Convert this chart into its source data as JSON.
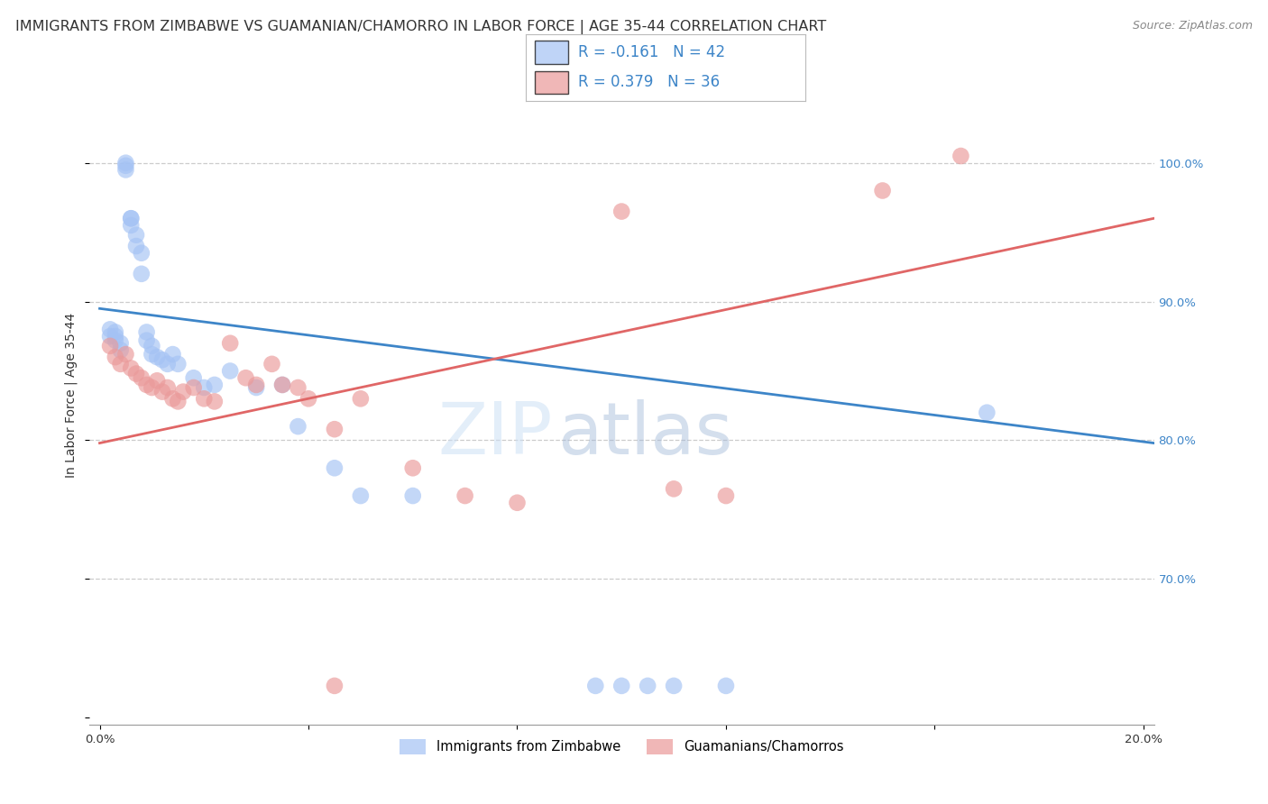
{
  "title": "IMMIGRANTS FROM ZIMBABWE VS GUAMANIAN/CHAMORRO IN LABOR FORCE | AGE 35-44 CORRELATION CHART",
  "source": "Source: ZipAtlas.com",
  "ylabel": "In Labor Force | Age 35-44",
  "xlim": [
    -0.002,
    0.202
  ],
  "ylim": [
    0.595,
    1.07
  ],
  "legend_R_blue": "-0.161",
  "legend_N_blue": "42",
  "legend_R_pink": "0.379",
  "legend_N_pink": "36",
  "blue_color": "#a4c2f4",
  "pink_color": "#ea9999",
  "blue_line_color": "#3d85c8",
  "pink_line_color": "#e06666",
  "watermark_zip": "ZIP",
  "watermark_atlas": "atlas",
  "blue_line_x": [
    0.0,
    0.202
  ],
  "blue_line_y": [
    0.895,
    0.798
  ],
  "pink_line_x": [
    0.0,
    0.202
  ],
  "pink_line_y": [
    0.798,
    0.96
  ],
  "blue_scatter_x": [
    0.002,
    0.002,
    0.003,
    0.003,
    0.003,
    0.004,
    0.004,
    0.005,
    0.005,
    0.005,
    0.006,
    0.006,
    0.006,
    0.007,
    0.007,
    0.008,
    0.008,
    0.009,
    0.009,
    0.01,
    0.01,
    0.011,
    0.012,
    0.013,
    0.014,
    0.015,
    0.018,
    0.02,
    0.022,
    0.025,
    0.03,
    0.035,
    0.038,
    0.045,
    0.05,
    0.06,
    0.095,
    0.1,
    0.105,
    0.11,
    0.12,
    0.17
  ],
  "blue_scatter_y": [
    0.88,
    0.875,
    0.878,
    0.875,
    0.872,
    0.87,
    0.865,
    0.995,
    0.998,
    1.0,
    0.96,
    0.96,
    0.955,
    0.948,
    0.94,
    0.935,
    0.92,
    0.878,
    0.872,
    0.868,
    0.862,
    0.86,
    0.858,
    0.855,
    0.862,
    0.855,
    0.845,
    0.838,
    0.84,
    0.85,
    0.838,
    0.84,
    0.81,
    0.78,
    0.76,
    0.76,
    0.623,
    0.623,
    0.623,
    0.623,
    0.623,
    0.82
  ],
  "pink_scatter_x": [
    0.002,
    0.003,
    0.004,
    0.005,
    0.006,
    0.007,
    0.008,
    0.009,
    0.01,
    0.011,
    0.012,
    0.013,
    0.014,
    0.015,
    0.016,
    0.018,
    0.02,
    0.022,
    0.025,
    0.028,
    0.03,
    0.033,
    0.035,
    0.038,
    0.04,
    0.045,
    0.05,
    0.06,
    0.07,
    0.08,
    0.11,
    0.12,
    0.15,
    0.165,
    0.1,
    0.045
  ],
  "pink_scatter_y": [
    0.868,
    0.86,
    0.855,
    0.862,
    0.852,
    0.848,
    0.845,
    0.84,
    0.838,
    0.843,
    0.835,
    0.838,
    0.83,
    0.828,
    0.835,
    0.838,
    0.83,
    0.828,
    0.87,
    0.845,
    0.84,
    0.855,
    0.84,
    0.838,
    0.83,
    0.808,
    0.83,
    0.78,
    0.76,
    0.755,
    0.765,
    0.76,
    0.98,
    1.005,
    0.965,
    0.623
  ],
  "grid_color": "#cccccc",
  "background_color": "#ffffff",
  "title_fontsize": 11.5,
  "source_fontsize": 9,
  "axis_label_fontsize": 10,
  "tick_fontsize": 9.5,
  "legend_label_blue": "Immigrants from Zimbabwe",
  "legend_label_pink": "Guamanians/Chamorros",
  "yticks": [
    0.7,
    0.8,
    0.9,
    1.0
  ],
  "xticks": [
    0.0,
    0.04,
    0.08,
    0.12,
    0.16,
    0.2
  ]
}
